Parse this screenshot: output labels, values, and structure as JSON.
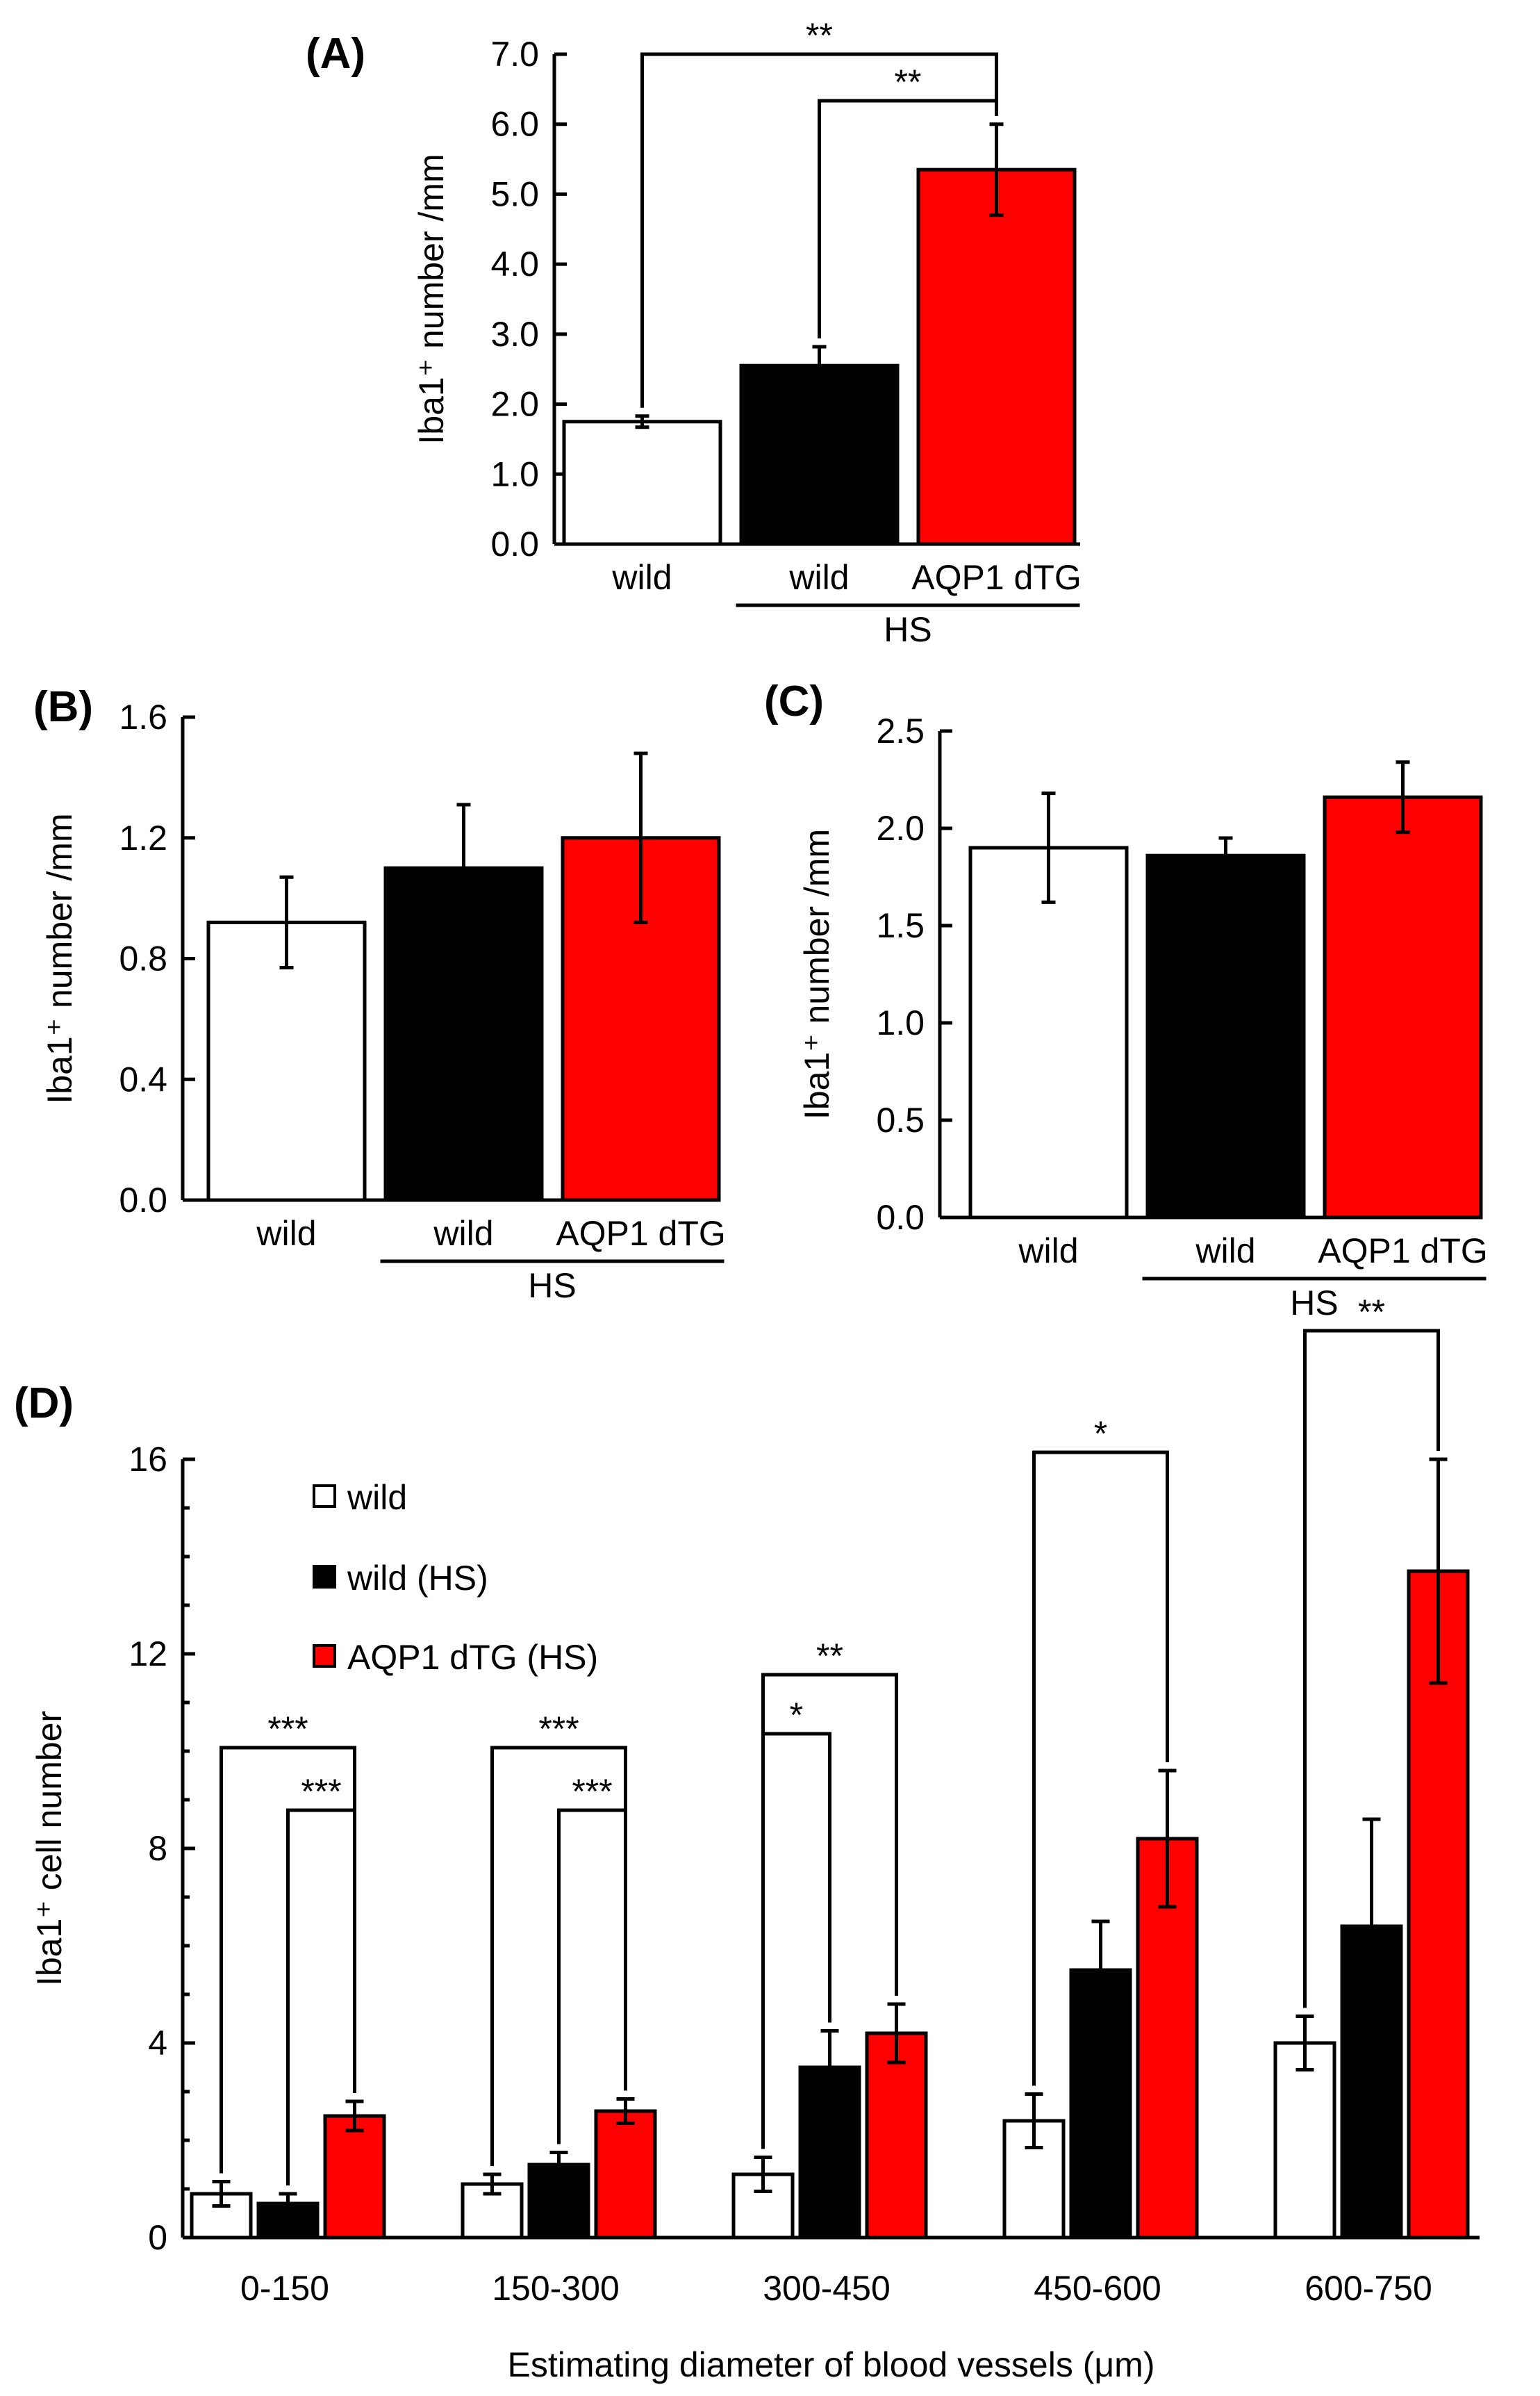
{
  "colors": {
    "wild": "#ffffff",
    "wild_hs": "#000000",
    "aqp1_hs": "#ff0000",
    "ink": "#000000"
  },
  "chart_data": [
    {
      "panel": "(A)",
      "type": "bar",
      "ylabel": "Iba1⁺ number /mm",
      "ylim": [
        0,
        7
      ],
      "yticks": [
        "0.0",
        "1.0",
        "2.0",
        "3.0",
        "4.0",
        "5.0",
        "6.0",
        "7.0"
      ],
      "bars": [
        {
          "label": "wild",
          "value": 1.75,
          "error": 0.08,
          "color": "#ffffff"
        },
        {
          "label": "wild",
          "value": 2.55,
          "error": 0.27,
          "color": "#000000"
        },
        {
          "label": "AQP1 dTG",
          "value": 5.35,
          "error": 0.65,
          "color": "#ff0000"
        }
      ],
      "group_label": "HS",
      "significance": [
        {
          "from": 0,
          "to": 2,
          "label": "**"
        },
        {
          "from": 1,
          "to": 2,
          "label": "**"
        }
      ]
    },
    {
      "panel": "(B)",
      "type": "bar",
      "ylabel": "Iba1⁺ number /mm",
      "ylim": [
        0,
        1.6
      ],
      "yticks": [
        "0.0",
        "0.4",
        "0.8",
        "1.2",
        "1.6"
      ],
      "bars": [
        {
          "label": "wild",
          "value": 0.92,
          "error": 0.15,
          "color": "#ffffff"
        },
        {
          "label": "wild",
          "value": 1.1,
          "error": 0.21,
          "color": "#000000"
        },
        {
          "label": "AQP1 dTG",
          "value": 1.2,
          "error": 0.28,
          "color": "#ff0000"
        }
      ],
      "group_label": "HS",
      "significance": []
    },
    {
      "panel": "(C)",
      "type": "bar",
      "ylabel": "Iba1⁺ number /mm",
      "ylim": [
        0,
        2.5
      ],
      "yticks": [
        "0.0",
        "0.5",
        "1.0",
        "1.5",
        "2.0",
        "2.5"
      ],
      "bars": [
        {
          "label": "wild",
          "value": 1.9,
          "error": 0.28,
          "color": "#ffffff"
        },
        {
          "label": "wild",
          "value": 1.86,
          "error": 0.09,
          "color": "#000000"
        },
        {
          "label": "AQP1 dTG",
          "value": 2.16,
          "error": 0.18,
          "color": "#ff0000"
        }
      ],
      "group_label": "HS",
      "significance": []
    },
    {
      "panel": "(D)",
      "type": "bar",
      "xlabel": "Estimating diameter of blood vessels (μm)",
      "ylabel": "Iba1⁺ cell number",
      "ylim": [
        0,
        16
      ],
      "yticks": [
        "0",
        "4",
        "8",
        "12",
        "16"
      ],
      "categories": [
        "0-150",
        "150-300",
        "300-450",
        "450-600",
        "600-750"
      ],
      "series": [
        {
          "name": "wild",
          "color": "#ffffff",
          "values": [
            0.9,
            1.1,
            1.3,
            2.4,
            4.0
          ],
          "errors": [
            0.25,
            0.2,
            0.35,
            0.55,
            0.55
          ]
        },
        {
          "name": "wild (HS)",
          "color": "#000000",
          "values": [
            0.7,
            1.5,
            3.5,
            5.5,
            6.4
          ],
          "errors": [
            0.2,
            0.25,
            0.75,
            1.0,
            2.2
          ]
        },
        {
          "name": "AQP1 dTG (HS)",
          "color": "#ff0000",
          "values": [
            2.5,
            2.6,
            4.2,
            8.2,
            13.7
          ],
          "errors": [
            0.3,
            0.25,
            0.6,
            1.4,
            2.3
          ]
        }
      ],
      "legend": {
        "placement": "top-left"
      },
      "significance": [
        {
          "category": 0,
          "from": 0,
          "to": 2,
          "label": "***"
        },
        {
          "category": 0,
          "from": 1,
          "to": 2,
          "label": "***"
        },
        {
          "category": 1,
          "from": 0,
          "to": 2,
          "label": "***"
        },
        {
          "category": 1,
          "from": 1,
          "to": 2,
          "label": "***"
        },
        {
          "category": 2,
          "from": 0,
          "to": 2,
          "label": "**"
        },
        {
          "category": 2,
          "from": 0,
          "to": 1,
          "label": "*"
        },
        {
          "category": 3,
          "from": 0,
          "to": 2,
          "label": "*"
        },
        {
          "category": 4,
          "from": 0,
          "to": 2,
          "label": "**"
        }
      ]
    }
  ]
}
